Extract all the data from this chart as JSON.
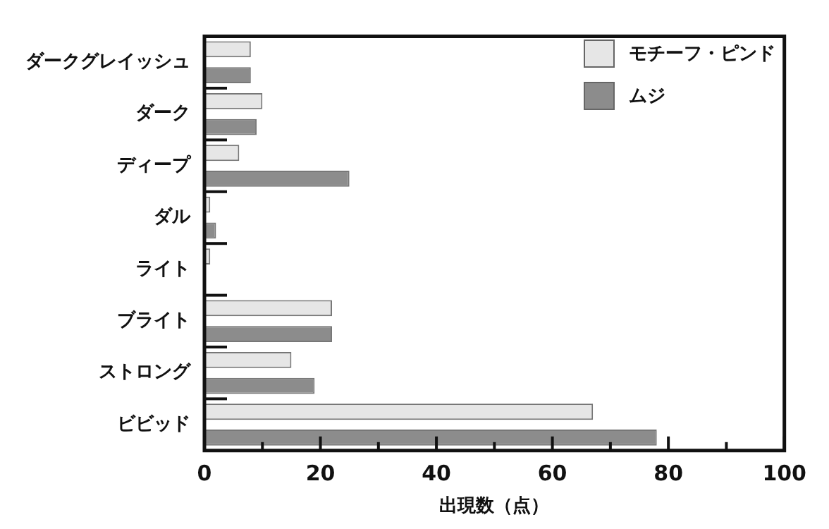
{
  "chart_data": {
    "type": "bar",
    "orientation": "horizontal",
    "xlabel": "出現数（点）",
    "categories": [
      "ダークグレイッシュ",
      "ダーク",
      "ディープ",
      "ダル",
      "ライト",
      "ブライト",
      "ストロング",
      "ビビッド"
    ],
    "series": [
      {
        "name": "モチーフ・ピンド",
        "color": "#e6e6e6",
        "values": [
          8,
          10,
          6,
          1,
          1,
          22,
          15,
          67
        ]
      },
      {
        "name": "ムジ",
        "color": "#8c8c8c",
        "values": [
          8,
          9,
          25,
          2,
          0,
          22,
          19,
          78
        ]
      }
    ],
    "xlim": [
      0,
      100
    ],
    "xticks": [
      0,
      {
        "value": 10,
        "label": null
      },
      20,
      {
        "value": 30,
        "label": null
      },
      40,
      {
        "value": 50,
        "label": null
      },
      60,
      {
        "value": 70,
        "label": null
      },
      80,
      {
        "value": 90,
        "label": null
      },
      100
    ],
    "grid": false,
    "legend": "top right"
  }
}
